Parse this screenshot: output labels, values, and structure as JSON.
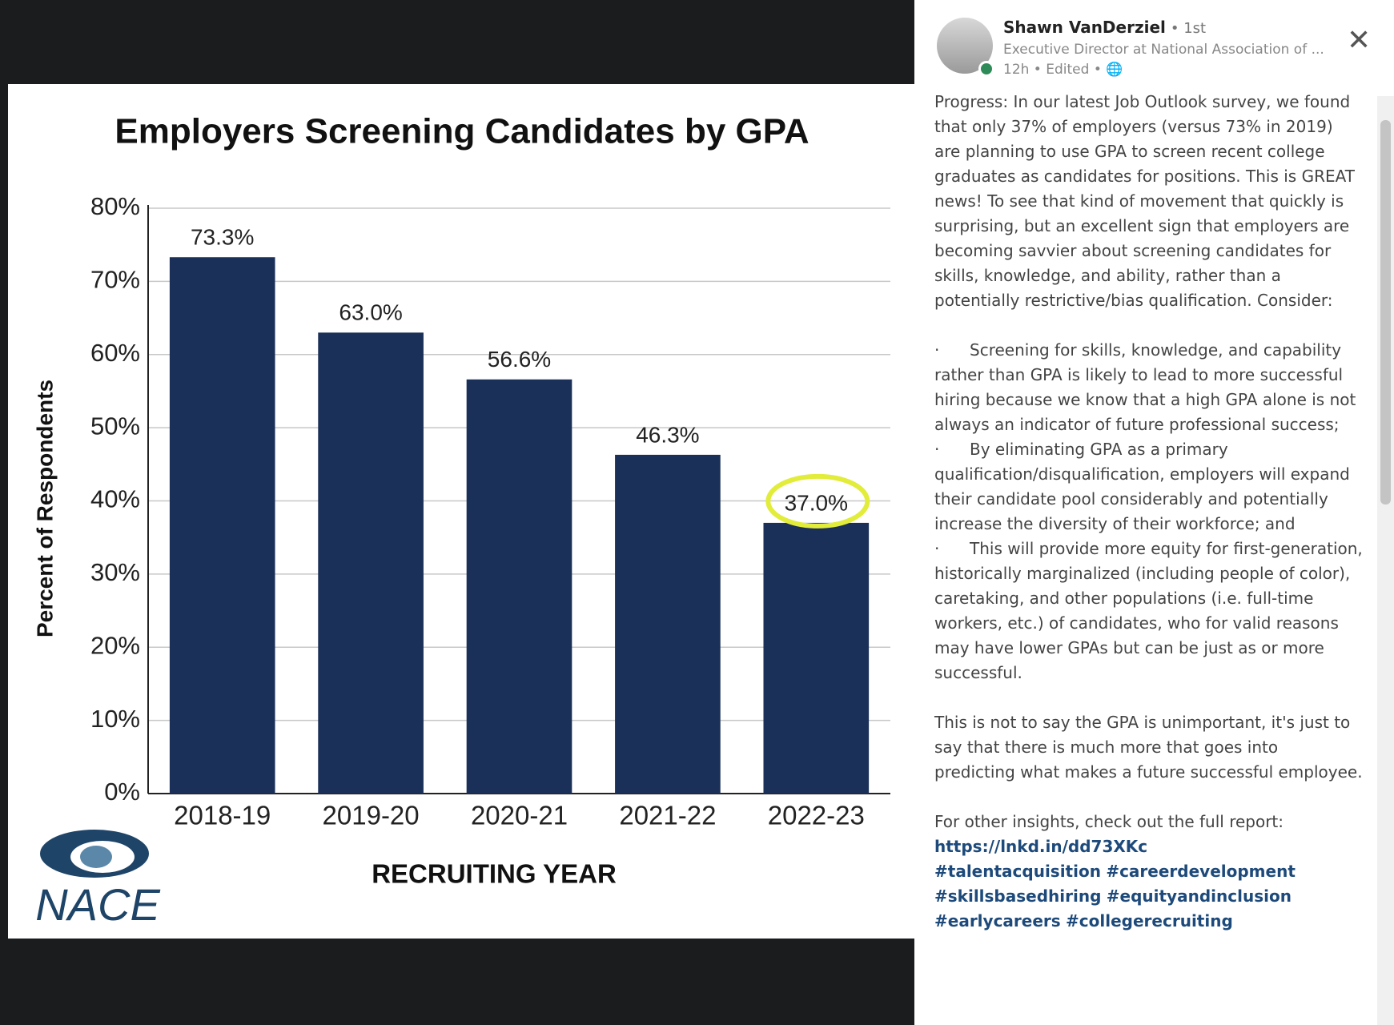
{
  "chart_data": {
    "type": "bar",
    "title": "Employers Screening Candidates by GPA",
    "categories": [
      "2018-19",
      "2019-20",
      "2020-21",
      "2021-22",
      "2022-23"
    ],
    "values": [
      73.3,
      63.0,
      56.6,
      46.3,
      37.0
    ],
    "value_labels": [
      "73.3%",
      "63.0%",
      "56.6%",
      "46.3%",
      "37.0%"
    ],
    "color": "#1b3058",
    "ylim": [
      0,
      80
    ],
    "yticks": [
      {
        "value": 0,
        "label": "0%"
      },
      {
        "value": 10,
        "label": "10%"
      },
      {
        "value": 20,
        "label": "20%"
      },
      {
        "value": 30,
        "label": "30%"
      },
      {
        "value": 40,
        "label": "40%"
      },
      {
        "value": 50,
        "label": "50%"
      },
      {
        "value": 60,
        "label": "60%"
      },
      {
        "value": 70,
        "label": "70%"
      },
      {
        "value": 80,
        "label": "80%"
      }
    ],
    "grid": true,
    "x_label": "RECRUITING YEAR",
    "y_label": "Percent of Respondents",
    "highlight": {
      "category": "2022-23",
      "color": "#e2ec3a"
    },
    "logo": "NACE"
  },
  "post": {
    "author": "Shawn VanDerziel",
    "degree": "• 1st",
    "headline": "Executive Director at National Association of ...",
    "meta": "12h • Edited •",
    "intro": "Progress: In our latest Job Outlook survey, we found that only 37% of employers (versus 73% in 2019) are planning to use GPA to screen recent college graduates as candidates for positions. This is GREAT news! To see that kind of movement that quickly is surprising, but an excellent sign that employers are becoming savvier about screening candidates for skills, knowledge, and ability, rather than a potentially restrictive/bias qualification. Consider:",
    "bullets": [
      "Screening for skills, knowledge, and capability rather than GPA is likely to lead to more successful hiring because we know that a high GPA alone is not always an indicator of future professional success;",
      "By eliminating GPA as a primary qualification/disqualification, employers will expand their candidate pool considerably and potentially increase the diversity of their workforce; and",
      "This will provide more equity for first-generation, historically marginalized (including people of color), caretaking, and other populations (i.e. full-time workers, etc.) of candidates, who for valid reasons may have lower GPAs but can be just as or more successful."
    ],
    "closing": "This is not to say the GPA is unimportant, it's just to say that there is much more that goes into predicting what makes a future successful employee.",
    "link_intro": "For other insights, check out the full report:",
    "link": "https://lnkd.in/dd73XKc",
    "hashtags": [
      "#talentacquisition",
      "#careerdevelopment",
      "#skillsbasedhiring",
      "#equityandinclusion",
      "#earlycareers",
      "#collegerecruiting"
    ]
  }
}
